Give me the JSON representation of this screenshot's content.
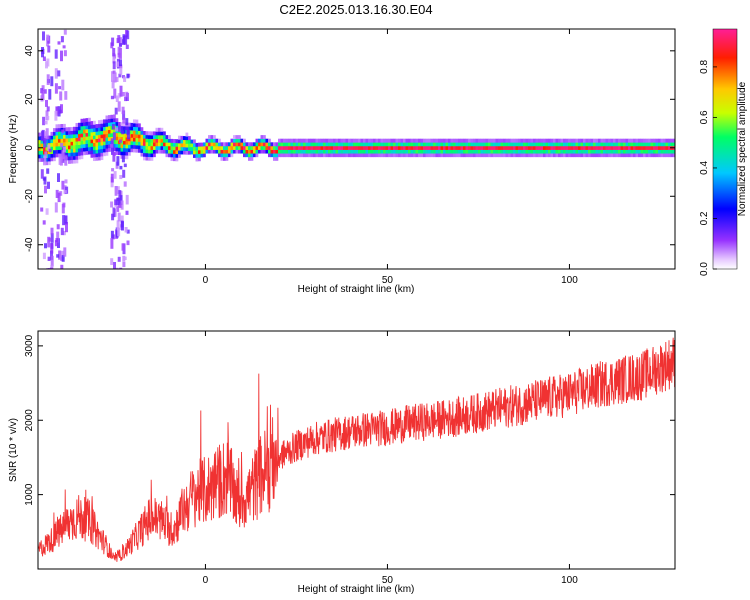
{
  "title": "C2E2.2025.013.16.30.E04",
  "chart_data": [
    {
      "type": "heatmap",
      "xlabel": "Height of straight line (km)",
      "ylabel": "Frequency (Hz)",
      "xlim": [
        -46,
        129
      ],
      "ylim": [
        -50,
        49
      ],
      "xticks": [
        0,
        50,
        100
      ],
      "yticks": [
        -40,
        -20,
        0,
        20,
        40
      ],
      "colorbar": {
        "label": "Normalized spectral amplitude",
        "range": [
          0,
          0.95
        ],
        "ticks": [
          "0.0",
          "0.2",
          "0.4",
          "0.6",
          "0.8"
        ],
        "tick_values": [
          0.0,
          0.2,
          0.4,
          0.6,
          0.8
        ],
        "colors": [
          "#ffffff",
          "#e6c8ff",
          "#9632ff",
          "#0000ff",
          "#00c8ff",
          "#00ff64",
          "#c8ff00",
          "#ffc800",
          "#ff1e00",
          "#ff1e96"
        ],
        "color_stops": [
          0.0,
          0.04,
          0.12,
          0.25,
          0.4,
          0.55,
          0.65,
          0.75,
          0.88,
          1.0
        ]
      },
      "ridge": {
        "x": [
          -46,
          -40,
          -35,
          -30,
          -25,
          -20,
          -15,
          -10,
          -5,
          0,
          10,
          20,
          50,
          100,
          129
        ],
        "center_hz": [
          0,
          1.5,
          3,
          4,
          5,
          3.5,
          2,
          1,
          0,
          0,
          0,
          0,
          0,
          0,
          0
        ],
        "halfwidth_hz": [
          5,
          6,
          7,
          7,
          7,
          6,
          5,
          4,
          3.5,
          3,
          3,
          3,
          3,
          3,
          3
        ]
      },
      "noise_columns_km": [
        -44,
        -40,
        -25,
        -23
      ]
    },
    {
      "type": "line",
      "xlabel": "Height of straight line (km)",
      "ylabel": "SNR (10 * v/v)",
      "xlim": [
        -46,
        129
      ],
      "ylim": [
        0,
        3200
      ],
      "xticks": [
        0,
        50,
        100
      ],
      "yticks": [
        1000,
        2000,
        3000
      ],
      "color": "#f03232",
      "series": [
        {
          "name": "SNR",
          "x": [
            -46,
            -42,
            -38,
            -35,
            -32,
            -30,
            -27,
            -25,
            -22,
            -18,
            -15,
            -12,
            -9,
            -6,
            -3,
            0,
            3,
            6,
            9,
            12,
            15,
            20,
            25,
            30,
            35,
            40,
            45,
            50,
            55,
            60,
            70,
            80,
            90,
            100,
            110,
            120,
            129
          ],
          "y": [
            250,
            400,
            600,
            700,
            650,
            500,
            300,
            120,
            250,
            500,
            700,
            650,
            500,
            800,
            1000,
            1050,
            1150,
            1250,
            900,
            1000,
            1250,
            1500,
            1650,
            1750,
            1800,
            1850,
            1880,
            1900,
            1950,
            1980,
            2050,
            2150,
            2250,
            2350,
            2500,
            2600,
            2800
          ]
        }
      ]
    }
  ]
}
